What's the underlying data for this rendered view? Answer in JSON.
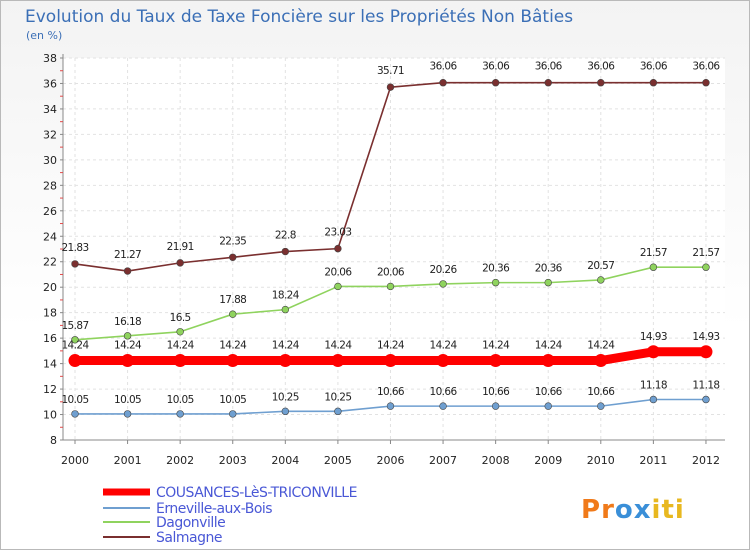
{
  "chart_data": {
    "type": "line",
    "title": "Evolution du Taux de Taxe Foncière sur les Propriétés Non Bâties",
    "subtitle": "(en %)",
    "x": [
      "2000",
      "2001",
      "2002",
      "2003",
      "2004",
      "2005",
      "2006",
      "2007",
      "2008",
      "2009",
      "2010",
      "2011",
      "2012"
    ],
    "ylim": [
      8,
      38
    ],
    "yticks": [
      8,
      10,
      12,
      14,
      16,
      18,
      20,
      22,
      24,
      26,
      28,
      30,
      32,
      34,
      36,
      38
    ],
    "grid": true,
    "legend_position": "bottom-left",
    "series": [
      {
        "name": "COUSANCES-LèS-TRICONVILLE",
        "color": "#ff0000",
        "emphasis": true,
        "values": [
          14.24,
          14.24,
          14.24,
          14.24,
          14.24,
          14.24,
          14.24,
          14.24,
          14.24,
          14.24,
          14.24,
          14.93,
          14.93
        ],
        "labels": [
          "14.24",
          "14.24",
          "14.24",
          "14.24",
          "14.24",
          "14.24",
          "14.24",
          "14.24",
          "14.24",
          "14.24",
          "14.24",
          "14.93",
          "14.93"
        ]
      },
      {
        "name": "Erneville-aux-Bois",
        "color": "#6f9fd0",
        "emphasis": false,
        "values": [
          10.05,
          10.05,
          10.05,
          10.05,
          10.25,
          10.25,
          10.66,
          10.66,
          10.66,
          10.66,
          10.66,
          11.18,
          11.18
        ],
        "labels": [
          "10.05",
          "10.05",
          "10.05",
          "10.05",
          "10.25",
          "10.25",
          "10.66",
          "10.66",
          "10.66",
          "10.66",
          "10.66",
          "11.18",
          "11.18"
        ]
      },
      {
        "name": "Dagonville",
        "color": "#8fd35e",
        "emphasis": false,
        "values": [
          15.87,
          16.18,
          16.5,
          17.88,
          18.24,
          20.06,
          20.06,
          20.26,
          20.36,
          20.36,
          20.57,
          21.57,
          21.57
        ],
        "labels": [
          "15.87",
          "16.18",
          "16.5",
          "17.88",
          "18.24",
          "20.06",
          "20.06",
          "20.26",
          "20.36",
          "20.36",
          "20.57",
          "21.57",
          "21.57"
        ]
      },
      {
        "name": "Salmagne",
        "color": "#7a2f2f",
        "emphasis": false,
        "values": [
          21.83,
          21.27,
          21.91,
          22.35,
          22.8,
          23.03,
          35.71,
          36.06,
          36.06,
          36.06,
          36.06,
          36.06,
          36.06
        ],
        "labels": [
          "21.83",
          "21.27",
          "21.91",
          "22.35",
          "22.8",
          "23.03",
          "35.71",
          "36.06",
          "36.06",
          "36.06",
          "36.06",
          "36.06",
          "36.06"
        ]
      }
    ]
  },
  "logo": {
    "text": "Proxiti",
    "letters": [
      "P",
      "r",
      "o",
      "x",
      "i",
      "t",
      "i"
    ],
    "colors": [
      "#f07a1a",
      "#f07a1a",
      "#3a8fd8",
      "#3a8fd8",
      "#e8b820",
      "#e8b820",
      "#e8b820"
    ]
  }
}
